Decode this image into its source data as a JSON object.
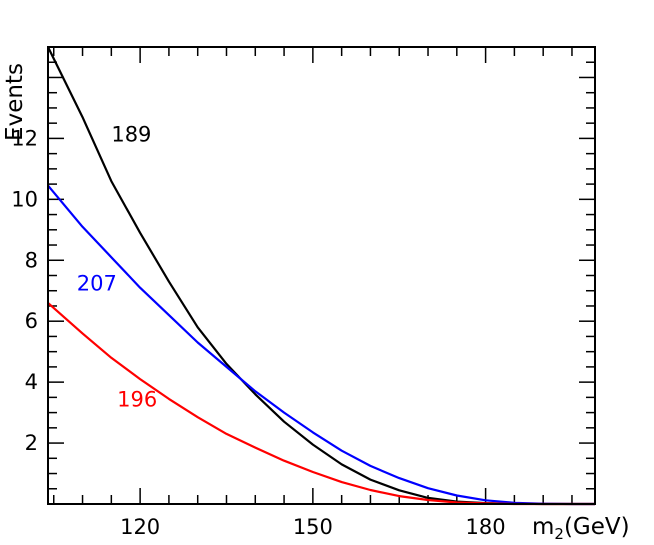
{
  "chart_data": {
    "type": "line",
    "xlabel": "m",
    "xlabel_sub": "2",
    "xlabel_unit": "(GeV)",
    "ylabel": "Events",
    "xlim": [
      104,
      199
    ],
    "ylim": [
      0,
      15
    ],
    "x_ticks": [
      120,
      150,
      180
    ],
    "y_ticks": [
      2,
      4,
      6,
      8,
      10,
      12
    ],
    "grid": false,
    "series": [
      {
        "name": "189",
        "color": "#000000",
        "x": [
          104,
          110,
          115,
          120,
          125,
          130,
          135,
          140,
          145,
          150,
          155,
          160,
          165,
          170,
          175,
          180,
          185,
          190,
          195,
          199
        ],
        "y": [
          15.0,
          12.7,
          10.6,
          8.9,
          7.3,
          5.8,
          4.6,
          3.6,
          2.7,
          1.95,
          1.3,
          0.8,
          0.45,
          0.2,
          0.08,
          0.03,
          0.01,
          0.0,
          0.0,
          0.0
        ]
      },
      {
        "name": "207",
        "color": "#0000ff",
        "x": [
          104,
          110,
          115,
          120,
          125,
          130,
          135,
          140,
          145,
          150,
          155,
          160,
          165,
          170,
          175,
          180,
          185,
          190,
          195,
          199
        ],
        "y": [
          10.45,
          9.1,
          8.1,
          7.1,
          6.2,
          5.3,
          4.5,
          3.7,
          3.0,
          2.35,
          1.75,
          1.25,
          0.85,
          0.52,
          0.28,
          0.12,
          0.04,
          0.01,
          0.0,
          0.0
        ]
      },
      {
        "name": "196",
        "color": "#ff0000",
        "x": [
          104,
          110,
          115,
          120,
          125,
          130,
          135,
          140,
          145,
          150,
          155,
          160,
          165,
          170,
          175,
          180,
          185,
          190,
          195,
          199
        ],
        "y": [
          6.6,
          5.6,
          4.8,
          4.1,
          3.45,
          2.85,
          2.3,
          1.85,
          1.42,
          1.05,
          0.72,
          0.46,
          0.26,
          0.13,
          0.05,
          0.02,
          0.0,
          0.0,
          0.0,
          0.0
        ]
      }
    ],
    "annotations": [
      {
        "text": "189",
        "x": 115,
        "y": 11.9,
        "color": "#000000"
      },
      {
        "text": "207",
        "x": 109,
        "y": 7.0,
        "color": "#0000ff"
      },
      {
        "text": "196",
        "x": 116,
        "y": 3.2,
        "color": "#ff0000"
      }
    ]
  }
}
